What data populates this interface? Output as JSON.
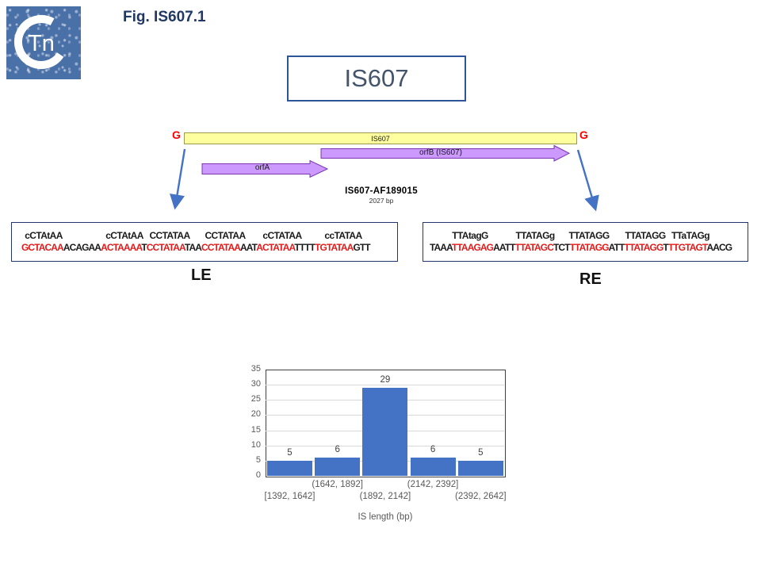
{
  "header": {
    "fig_label": "Fig. IS607.1",
    "logo_text": "Tn"
  },
  "title_box": {
    "label": "IS607"
  },
  "diagram": {
    "bar_label": "IS607",
    "left_flank": "G",
    "right_flank": "G",
    "orfA_label": "orfA",
    "orfB_label": "orfB (IS607)",
    "accession": "IS607-AF189015",
    "length_bp": "2027 bp",
    "bar_color": "#FEFF9E",
    "arrow_color": "#CC99FF",
    "connector_color": "#4472C4",
    "flank_color": "#FF0000"
  },
  "le": {
    "label": "LE",
    "consensus_groups": [
      "cCTAtAA",
      "cCTAtAA",
      "CCTATAA",
      "CCTATAA",
      "cCTATAA",
      "ccTATAA"
    ],
    "segments": [
      {
        "text": "GCTACAA",
        "color": "red"
      },
      {
        "text": "ACAGAA",
        "color": "black"
      },
      {
        "text": "ACTAAAA",
        "color": "red"
      },
      {
        "text": "T",
        "color": "black"
      },
      {
        "text": "CCTATAA",
        "color": "red"
      },
      {
        "text": "TAA",
        "color": "black"
      },
      {
        "text": "CCTATAA",
        "color": "red"
      },
      {
        "text": "AAT",
        "color": "black"
      },
      {
        "text": "ACTATAA",
        "color": "red"
      },
      {
        "text": "TTTT",
        "color": "black"
      },
      {
        "text": "TGTATAA",
        "color": "red"
      },
      {
        "text": "GTT",
        "color": "black"
      }
    ]
  },
  "re": {
    "label": "RE",
    "consensus_groups": [
      "TTAtagG",
      "TTATAGg",
      "TTATAGG",
      "TTATAGG",
      "TTaTAGg"
    ],
    "segments": [
      {
        "text": "TAAA",
        "color": "black"
      },
      {
        "text": "TTAAGAG",
        "color": "red"
      },
      {
        "text": "AATT",
        "color": "black"
      },
      {
        "text": "TTATAGC",
        "color": "red"
      },
      {
        "text": "TCT",
        "color": "black"
      },
      {
        "text": "TTATAGG",
        "color": "red"
      },
      {
        "text": "ATT",
        "color": "black"
      },
      {
        "text": "TTATAGG",
        "color": "red"
      },
      {
        "text": "T",
        "color": "black"
      },
      {
        "text": "TTGTAGT",
        "color": "red"
      },
      {
        "text": "AACG",
        "color": "black"
      }
    ]
  },
  "chart_data": {
    "type": "bar",
    "title": "",
    "categories": [
      "[1392, 1642]",
      "(1642, 1892]",
      "(1892, 2142]",
      "(2142, 2392]",
      "(2392, 2642]"
    ],
    "values": [
      5,
      6,
      29,
      6,
      5
    ],
    "data_labels": [
      "5",
      "6",
      "29",
      "6",
      "5"
    ],
    "xlabel": "IS length  (bp)",
    "ylabel": "",
    "ylim": [
      0,
      35
    ],
    "yticks": [
      0,
      5,
      10,
      15,
      20,
      25,
      30,
      35
    ],
    "grid": true,
    "legend": false,
    "bar_color": "#4472C4"
  }
}
